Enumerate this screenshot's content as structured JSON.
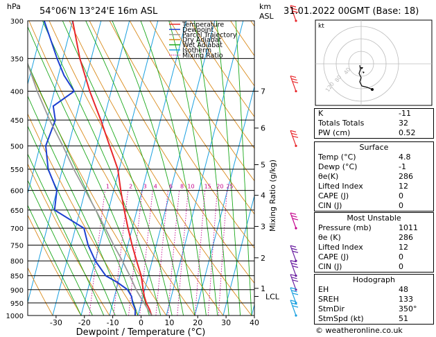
{
  "header": {
    "units_left": "hPa",
    "location": "54°06'N  13°24'E  16m  ASL",
    "units_km": "km",
    "units_asl": "ASL",
    "datetime": "31.01.2022  00GMT  (Base: 18)"
  },
  "chart_data": {
    "type": "line",
    "xlabel": "Dewpoint / Temperature (°C)",
    "ylabel": "",
    "x_ticks": [
      -30,
      -20,
      -10,
      0,
      10,
      20,
      30,
      40
    ],
    "xlim": [
      -40,
      40
    ],
    "p_levels": [
      300,
      350,
      400,
      450,
      500,
      550,
      600,
      650,
      700,
      750,
      800,
      850,
      900,
      950,
      1000
    ],
    "ylim": [
      1000,
      300
    ],
    "y_log_scale": true,
    "skew": true,
    "km_ticks": [
      {
        "label": "7",
        "p": 400
      },
      {
        "label": "6",
        "p": 465
      },
      {
        "label": "5",
        "p": 540
      },
      {
        "label": "4",
        "p": 612
      },
      {
        "label": "3",
        "p": 695
      },
      {
        "label": "2",
        "p": 790
      },
      {
        "label": "1",
        "p": 895
      }
    ],
    "lcl": {
      "label": "LCL",
      "p": 925
    },
    "mixing_ratio_axis_label": "Mixing Ratio (g/kg)",
    "mixing_ratio_labels": [
      "1",
      "2",
      "3",
      "4",
      "6",
      "8",
      "10",
      "15",
      "20",
      "25"
    ],
    "legend": [
      {
        "name": "Temperature",
        "color": "#e8262a"
      },
      {
        "name": "Dewpoint",
        "color": "#1c3fd0"
      },
      {
        "name": "Parcel Trajectory",
        "color": "#999999"
      },
      {
        "name": "Dry Adiabat",
        "color": "#d98a1a"
      },
      {
        "name": "Wet Adiabat",
        "color": "#1aa81a"
      },
      {
        "name": "Isotherm",
        "color": "#1aa0e0"
      },
      {
        "name": "Mixing Ratio",
        "color": "#c4008c"
      }
    ],
    "legend_position": "top-center",
    "series": [
      {
        "key": "temperature",
        "color": "#e8262a",
        "points": [
          [
            1000,
            4.8
          ],
          [
            975,
            3.5
          ],
          [
            950,
            1.8
          ],
          [
            925,
            0.5
          ],
          [
            900,
            -0.5
          ],
          [
            850,
            -2.5
          ],
          [
            800,
            -5.5
          ],
          [
            750,
            -8.5
          ],
          [
            700,
            -11.5
          ],
          [
            650,
            -14.5
          ],
          [
            600,
            -17.5
          ],
          [
            550,
            -20.5
          ],
          [
            500,
            -25.5
          ],
          [
            450,
            -31
          ],
          [
            400,
            -37.5
          ],
          [
            350,
            -44
          ],
          [
            300,
            -50
          ]
        ]
      },
      {
        "key": "dewpoint",
        "color": "#1c3fd0",
        "points": [
          [
            1000,
            -1
          ],
          [
            975,
            -1.5
          ],
          [
            950,
            -3
          ],
          [
            925,
            -4
          ],
          [
            900,
            -6
          ],
          [
            875,
            -10
          ],
          [
            850,
            -15
          ],
          [
            800,
            -20
          ],
          [
            750,
            -24
          ],
          [
            700,
            -27
          ],
          [
            650,
            -39
          ],
          [
            600,
            -40
          ],
          [
            550,
            -45
          ],
          [
            500,
            -48
          ],
          [
            450,
            -47
          ],
          [
            425,
            -49
          ],
          [
            400,
            -43
          ],
          [
            375,
            -48
          ],
          [
            350,
            -52
          ],
          [
            300,
            -60
          ]
        ]
      },
      {
        "key": "parcel",
        "color": "#999999",
        "points": [
          [
            1000,
            4.8
          ],
          [
            925,
            -1
          ],
          [
            900,
            -3
          ],
          [
            850,
            -6.5
          ],
          [
            800,
            -10.5
          ],
          [
            750,
            -15
          ],
          [
            700,
            -19.5
          ],
          [
            650,
            -24.5
          ],
          [
            600,
            -30
          ],
          [
            550,
            -36
          ],
          [
            500,
            -42
          ],
          [
            450,
            -49
          ],
          [
            400,
            -56
          ],
          [
            350,
            -63
          ],
          [
            300,
            -70
          ]
        ]
      }
    ]
  },
  "hodograph": {
    "unit_label": "kt",
    "ring_labels": [
      "40",
      "80",
      "120"
    ]
  },
  "indices": {
    "rows": [
      {
        "label": "K",
        "value": "-11"
      },
      {
        "label": "Totals Totals",
        "value": "32"
      },
      {
        "label": "PW (cm)",
        "value": "0.52"
      }
    ],
    "surface": {
      "title": "Surface",
      "rows": [
        {
          "label": "Temp (°C)",
          "value": "4.8"
        },
        {
          "label": "Dewp (°C)",
          "value": "-1"
        },
        {
          "label": "θe(K)",
          "value": "286"
        },
        {
          "label": "Lifted Index",
          "value": "12"
        },
        {
          "label": "CAPE (J)",
          "value": "0"
        },
        {
          "label": "CIN (J)",
          "value": "0"
        }
      ]
    },
    "most_unstable": {
      "title": "Most Unstable",
      "rows": [
        {
          "label": "Pressure (mb)",
          "value": "1011"
        },
        {
          "label": "θe (K)",
          "value": "286"
        },
        {
          "label": "Lifted Index",
          "value": "12"
        },
        {
          "label": "CAPE (J)",
          "value": "0"
        },
        {
          "label": "CIN (J)",
          "value": "0"
        }
      ]
    },
    "hodograph_params": {
      "title": "Hodograph",
      "rows": [
        {
          "label": "EH",
          "value": "48"
        },
        {
          "label": "SREH",
          "value": "133"
        },
        {
          "label": "StmDir",
          "value": "350°"
        },
        {
          "label": "StmSpd (kt)",
          "value": "51"
        }
      ]
    }
  },
  "credit": "© weatheronline.co.uk"
}
